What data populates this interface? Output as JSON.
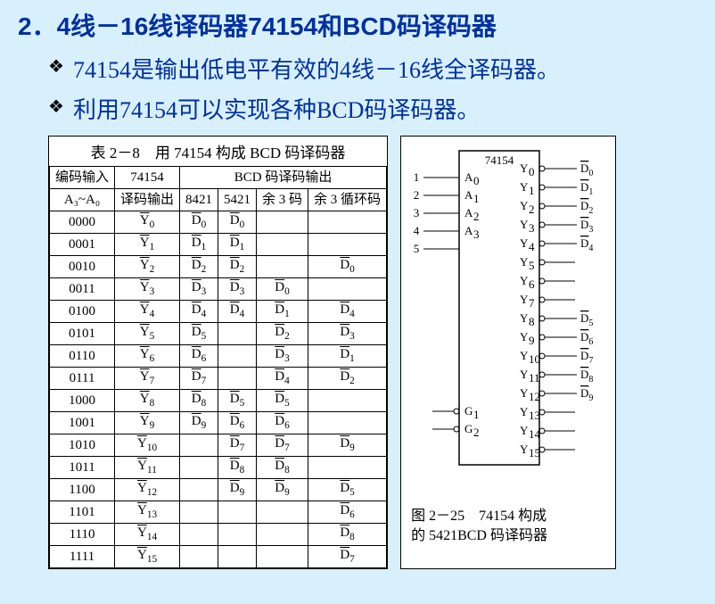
{
  "heading": "2．4线－16线译码器74154和BCD码译码器",
  "bullets": [
    "74154是输出低电平有效的4线－16线全译码器。",
    "利用74154可以实现各种BCD码译码器。"
  ],
  "table": {
    "title": "表 2－8　用 74154 构成 BCD 码译码器",
    "header_top": {
      "col1": "编码输入",
      "col2": "74154",
      "span": "BCD 码译码输出"
    },
    "header_sub": {
      "col1": "A₃~A₀",
      "col2": "译码输出",
      "c3": "8421",
      "c4": "5421",
      "c5": "余 3 码",
      "c6": "余 3 循环码"
    },
    "rows": [
      {
        "in": "0000",
        "y": "Y0",
        "d": [
          "D0",
          "D0",
          "",
          ""
        ]
      },
      {
        "in": "0001",
        "y": "Y1",
        "d": [
          "D1",
          "D1",
          "",
          ""
        ]
      },
      {
        "in": "0010",
        "y": "Y2",
        "d": [
          "D2",
          "D2",
          "",
          "D0"
        ]
      },
      {
        "in": "0011",
        "y": "Y3",
        "d": [
          "D3",
          "D3",
          "D0",
          ""
        ]
      },
      {
        "in": "0100",
        "y": "Y4",
        "d": [
          "D4",
          "D4",
          "D1",
          "D4"
        ]
      },
      {
        "in": "0101",
        "y": "Y5",
        "d": [
          "D5",
          "",
          "D2",
          "D3"
        ]
      },
      {
        "in": "0110",
        "y": "Y6",
        "d": [
          "D6",
          "",
          "D3",
          "D1"
        ]
      },
      {
        "in": "0111",
        "y": "Y7",
        "d": [
          "D7",
          "",
          "D4",
          "D2"
        ]
      },
      {
        "in": "1000",
        "y": "Y8",
        "d": [
          "D8",
          "D5",
          "D5",
          ""
        ]
      },
      {
        "in": "1001",
        "y": "Y9",
        "d": [
          "D9",
          "D6",
          "D6",
          ""
        ]
      },
      {
        "in": "1010",
        "y": "Y10",
        "d": [
          "",
          "D7",
          "D7",
          "D9"
        ]
      },
      {
        "in": "1011",
        "y": "Y11",
        "d": [
          "",
          "D8",
          "D8",
          ""
        ]
      },
      {
        "in": "1100",
        "y": "Y12",
        "d": [
          "",
          "D9",
          "D9",
          "D5"
        ]
      },
      {
        "in": "1101",
        "y": "Y13",
        "d": [
          "",
          "",
          "",
          "D6"
        ]
      },
      {
        "in": "1110",
        "y": "Y14",
        "d": [
          "",
          "",
          "",
          "D8"
        ]
      },
      {
        "in": "1111",
        "y": "Y15",
        "d": [
          "",
          "",
          "",
          "D7"
        ]
      }
    ]
  },
  "figure": {
    "chip_label": "74154",
    "left_inputs": [
      {
        "num": "1",
        "lbl": "A",
        "sub": "0"
      },
      {
        "num": "2",
        "lbl": "A",
        "sub": "1"
      },
      {
        "num": "3",
        "lbl": "A",
        "sub": "2"
      },
      {
        "num": "4",
        "lbl": "A",
        "sub": "3"
      },
      {
        "num": "5",
        "lbl": "",
        "sub": ""
      }
    ],
    "enable": [
      "G₁",
      "G₂"
    ],
    "y_outputs": [
      "Y0",
      "Y1",
      "Y2",
      "Y3",
      "Y4",
      "Y5",
      "Y6",
      "Y7",
      "Y8",
      "Y9",
      "Y10",
      "Y11",
      "Y12",
      "Y13",
      "Y14",
      "Y15"
    ],
    "right_d": {
      "0": "D0",
      "1": "D1",
      "2": "D2",
      "3": "D3",
      "4": "D4",
      "8": "D5",
      "9": "D6",
      "10": "D7",
      "11": "D8",
      "12": "D9"
    },
    "caption_line1": "图 2－25　74154 构成",
    "caption_line2": "的 5421BCD 码译码器"
  },
  "style": {
    "bg": "#d8f0fc",
    "heading_color": "#0030a0",
    "text_color": "#0030a0",
    "table_bg": "#ffffff",
    "border_color": "#000000",
    "heading_fontsize": 28,
    "bullet_fontsize": 26,
    "table_fontsize": 15,
    "caption_fontsize": 16
  }
}
